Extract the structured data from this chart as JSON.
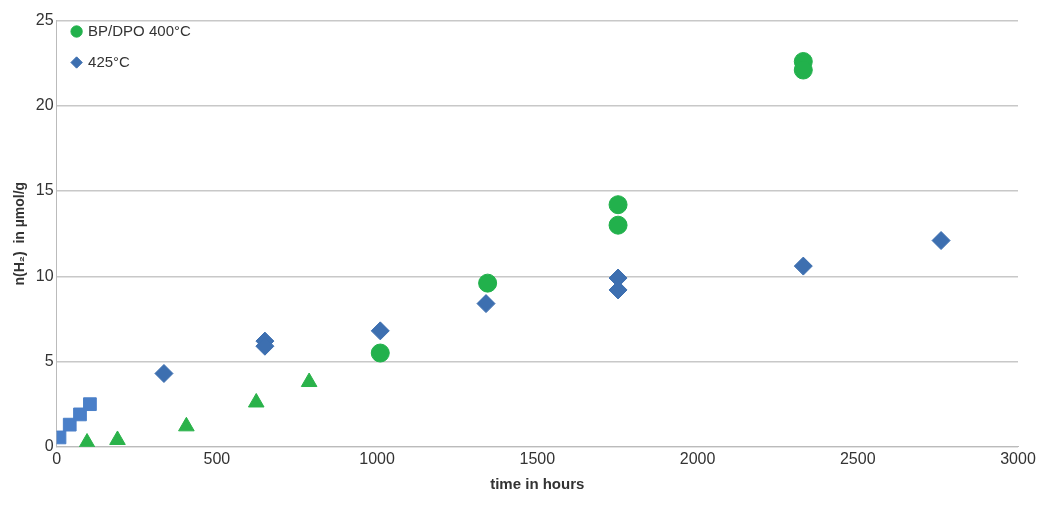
{
  "chart_data": {
    "type": "scatter",
    "xlabel": "time in hours",
    "ylabel": "n(H₂)  in µmol/g",
    "xlim": [
      0,
      3000
    ],
    "xticks": [
      0,
      500,
      1000,
      1500,
      2000,
      2500,
      3000
    ],
    "ylim": [
      0,
      25
    ],
    "yticks": [
      0,
      5,
      10,
      15,
      20,
      25
    ],
    "grid": "y",
    "legend": "top left",
    "series": [
      {
        "name": "BP/DPO 400°C",
        "color": "#22b14c",
        "marker": "circle",
        "x": [
          1010,
          1345,
          1752,
          1752,
          2330,
          2330
        ],
        "values": [
          5.5,
          9.6,
          14.2,
          13.0,
          22.6,
          22.1
        ]
      },
      {
        "name": "425°C",
        "color": "#3d6fb0",
        "marker": "diamond",
        "x": [
          335,
          650,
          650,
          1010,
          1340,
          1752,
          1752,
          2330,
          2760
        ],
        "values": [
          4.3,
          6.2,
          5.9,
          6.8,
          8.4,
          9.9,
          9.2,
          10.6,
          12.1
        ]
      },
      {
        "color": "#4a7fc8",
        "marker": "square",
        "x": [
          9,
          41,
          73,
          104
        ],
        "values": [
          0.55,
          1.3,
          1.9,
          2.5
        ]
      },
      {
        "color": "#2ab24a",
        "marker": "triangle",
        "x": [
          95,
          190,
          405,
          623,
          788
        ],
        "values": [
          0.25,
          0.4,
          1.2,
          2.6,
          3.8
        ]
      }
    ]
  }
}
